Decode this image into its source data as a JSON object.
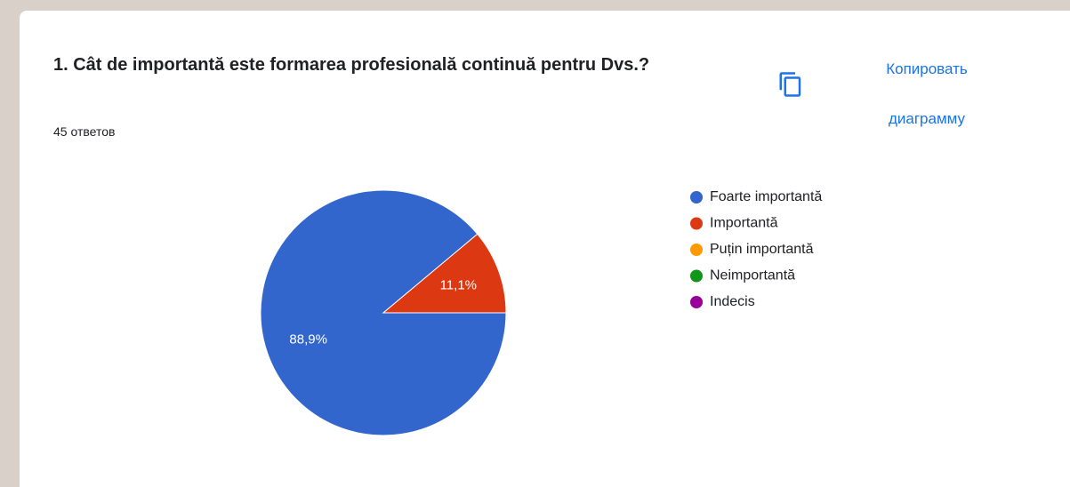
{
  "chart_data": {
    "type": "pie",
    "title": "1. Cât de importantă este formarea profesională continuă pentru Dvs.?",
    "subtitle": "45 ответов",
    "button": "Копировать диаграмму",
    "categories": [
      "Foarte importantă",
      "Importantă",
      "Puțin importantă",
      "Neimportantă",
      "Indecis"
    ],
    "values": [
      88.9,
      11.1,
      0,
      0,
      0
    ],
    "value_labels": [
      "88,9%",
      "11,1%",
      null,
      null,
      null
    ],
    "colors": [
      "#3366cc",
      "#dc3912",
      "#ff9900",
      "#109618",
      "#990099"
    ],
    "legend": "right"
  }
}
